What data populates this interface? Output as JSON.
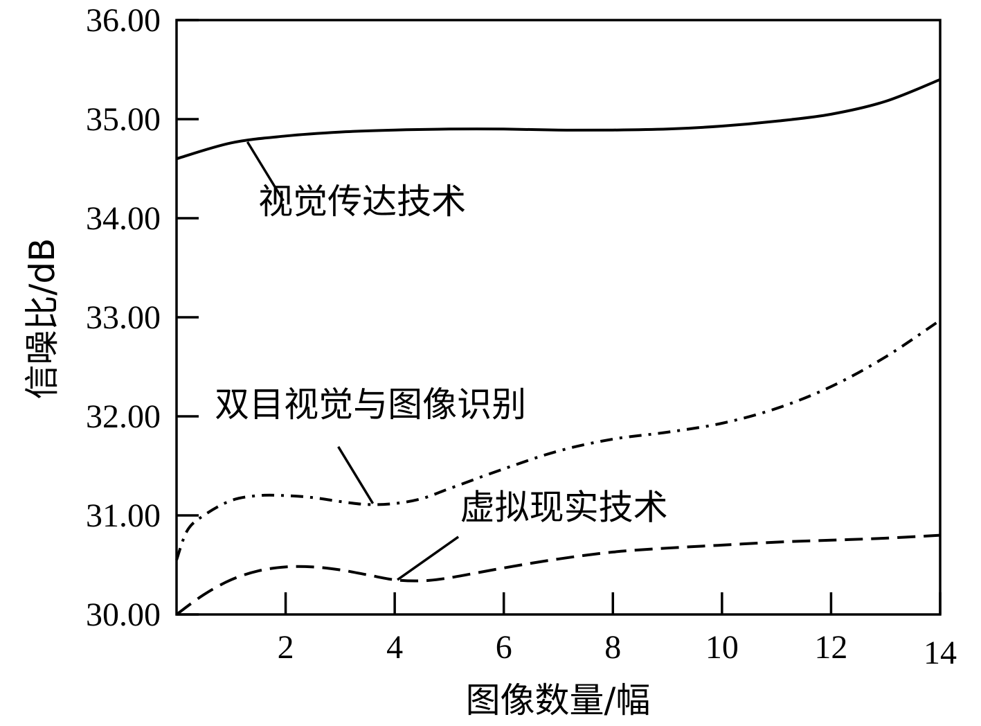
{
  "chart_data": {
    "type": "line",
    "xlabel": "图像数量/幅",
    "ylabel": "信噪比/dB",
    "xlim": [
      0,
      14
    ],
    "ylim": [
      30,
      36
    ],
    "xticks": [
      2,
      4,
      6,
      8,
      10,
      12,
      14
    ],
    "xtick_labels": [
      "2",
      "4",
      "6",
      "8",
      "10",
      "12",
      "14"
    ],
    "yticks": [
      30,
      31,
      32,
      33,
      34,
      35,
      36
    ],
    "ytick_labels": [
      "30.00",
      "31.00",
      "32.00",
      "33.00",
      "34.00",
      "35.00",
      "36.00"
    ],
    "grid": false,
    "legend": "none",
    "series": [
      {
        "name": "视觉传达技术",
        "style": "solid",
        "x": [
          0,
          1,
          2,
          3,
          4,
          5,
          6,
          7,
          8,
          9,
          10,
          11,
          12,
          13,
          14
        ],
        "y": [
          34.6,
          34.76,
          34.83,
          34.87,
          34.89,
          34.9,
          34.9,
          34.89,
          34.89,
          34.9,
          34.93,
          34.98,
          35.05,
          35.18,
          35.4
        ],
        "annotation": {
          "text": "视觉传达技术",
          "point_x": 1.3,
          "point_y": 34.77,
          "label_x": 1.5,
          "label_y": 34.05
        }
      },
      {
        "name": "双目视觉与图像识别",
        "style": "dashdot",
        "x": [
          0,
          0.2,
          0.5,
          1,
          1.5,
          2,
          2.5,
          3,
          3.5,
          4,
          4.5,
          5,
          6,
          7,
          8,
          9,
          10,
          11,
          12,
          13,
          14
        ],
        "y": [
          30.55,
          30.85,
          31.0,
          31.15,
          31.2,
          31.2,
          31.18,
          31.14,
          31.11,
          31.12,
          31.17,
          31.27,
          31.47,
          31.65,
          31.77,
          31.84,
          31.93,
          32.08,
          32.3,
          32.6,
          32.97
        ],
        "annotation": {
          "text": "双目视觉与图像识别",
          "point_x": 3.6,
          "point_y": 31.12,
          "label_x": 0.7,
          "label_y": 32.0
        }
      },
      {
        "name": "虚拟现实技术",
        "style": "dashed",
        "x": [
          0,
          0.5,
          1,
          1.5,
          2,
          2.5,
          3,
          3.5,
          4,
          4.5,
          5,
          6,
          7,
          8,
          9,
          10,
          11,
          12,
          13,
          14
        ],
        "y": [
          30.0,
          30.2,
          30.35,
          30.44,
          30.48,
          30.48,
          30.45,
          30.4,
          30.35,
          30.34,
          30.37,
          30.47,
          30.56,
          30.63,
          30.67,
          30.7,
          30.73,
          30.75,
          30.77,
          30.8
        ],
        "annotation": {
          "text": "虚拟现实技术",
          "point_x": 4.05,
          "point_y": 30.35,
          "label_x": 5.2,
          "label_y": 30.96
        }
      }
    ]
  }
}
